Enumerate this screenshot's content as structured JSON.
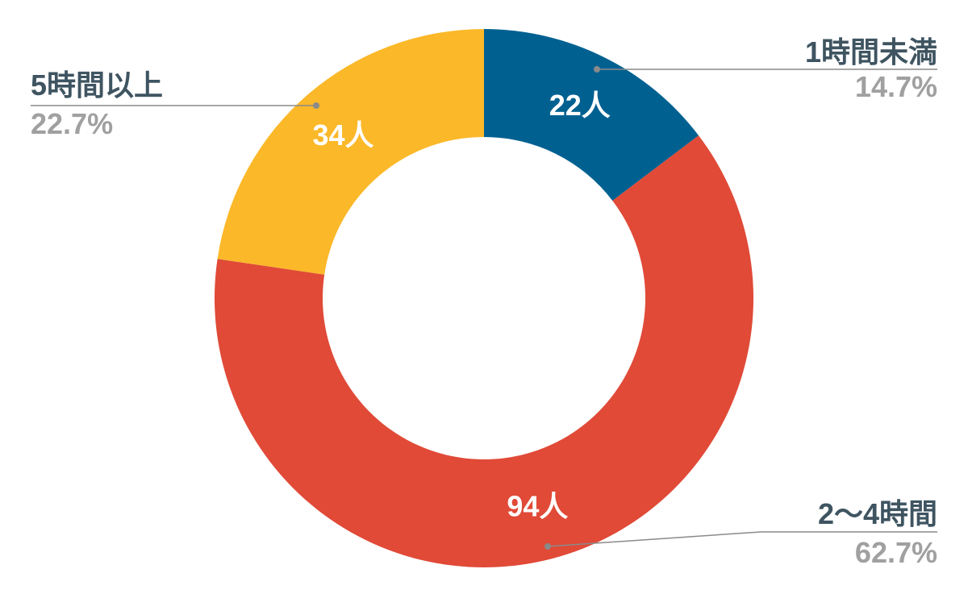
{
  "chart_data": {
    "type": "pie",
    "style": "donut",
    "categories": [
      "1時間未満",
      "2～4時間",
      "5時間以上"
    ],
    "values": [
      22,
      94,
      34
    ],
    "value_labels": [
      "22人",
      "94人",
      "34人"
    ],
    "percent_labels": [
      "14.7%",
      "62.7%",
      "22.7%"
    ],
    "colors": [
      "#006191",
      "#e04a37",
      "#fbb829"
    ],
    "category_label_color": "#3f5461",
    "percent_label_color": "#a0a0a0",
    "leader_line_color": "#8a8a8a",
    "start_angle": "top",
    "direction": "clockwise"
  }
}
